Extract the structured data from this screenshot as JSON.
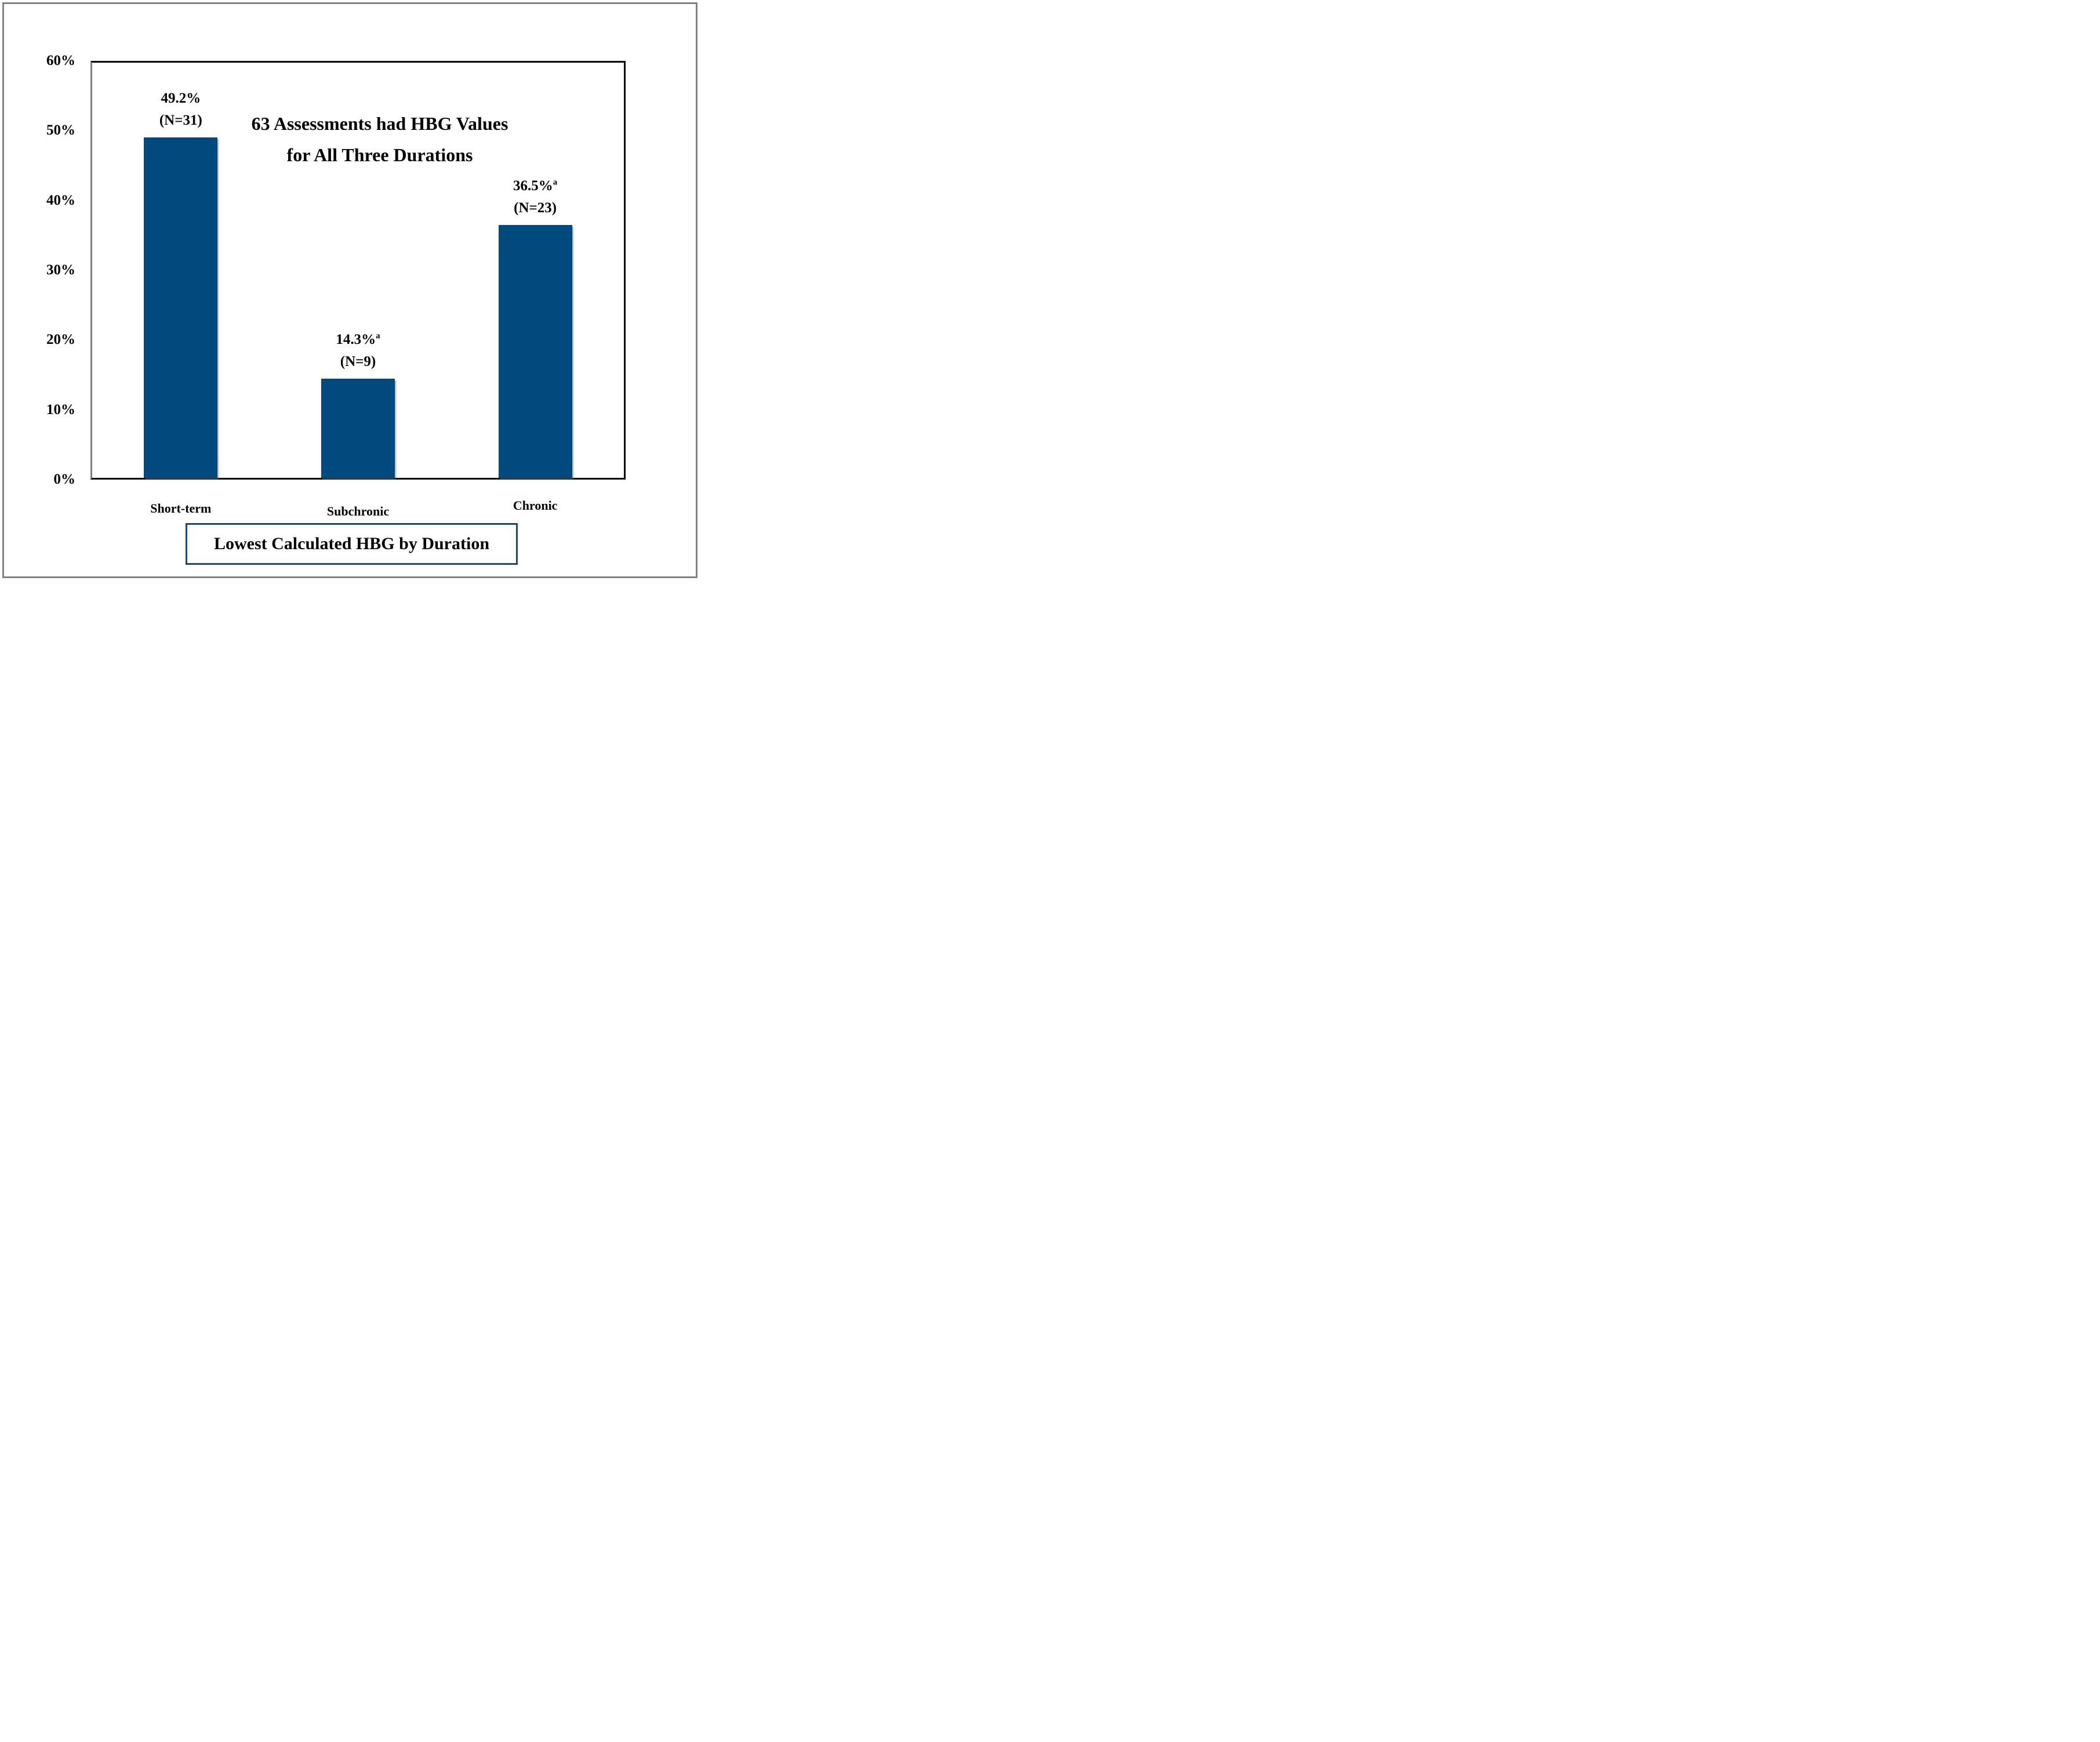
{
  "window": {
    "background": "#FFFFFF",
    "frame_border_color": "#828282"
  },
  "chart_data": {
    "type": "bar",
    "title": "Lowest Calculated HBG by Duration",
    "annotation": {
      "line1": "63 Assessments had HBG Values",
      "line2": "for All Three Durations"
    },
    "categories": [
      "Short-term",
      "Subchronic",
      "Chronic"
    ],
    "values": [
      49.2,
      14.3,
      36.5
    ],
    "bar_labels": [
      {
        "percent": "49.2%",
        "superscript": "",
        "n": "(N=31)"
      },
      {
        "percent": "14.3%",
        "superscript": "a",
        "n": "(N=9)"
      },
      {
        "percent": "36.5%",
        "superscript": "a",
        "n": "(N=23)"
      }
    ],
    "ylim": [
      0,
      60
    ],
    "y_tick_labels": [
      "60%",
      "50%",
      "40%",
      "30%",
      "20%",
      "10%",
      "0%"
    ],
    "grid": false,
    "legend": "none",
    "bar_color": "#004A80",
    "title_box_border_color": "#19497B",
    "axis_line_color": "#808080",
    "plot_border_color": "#000000"
  }
}
